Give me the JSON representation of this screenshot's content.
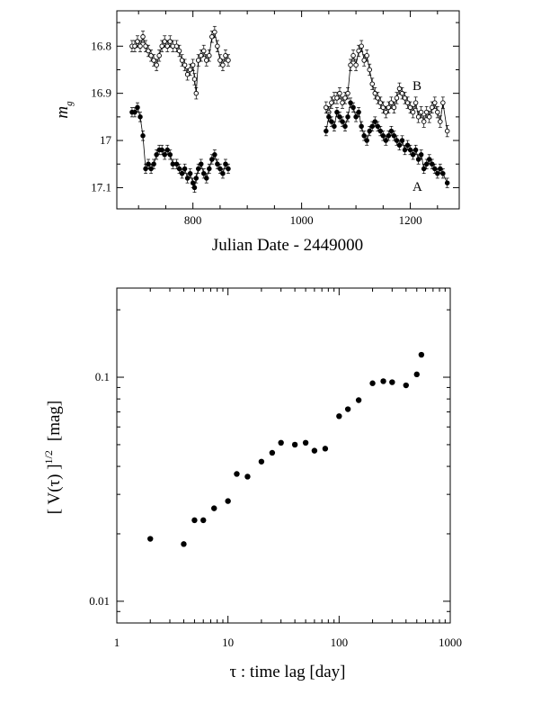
{
  "chart_data": [
    {
      "type": "scatter",
      "xlabel": "Julian Date - 2449000",
      "ylabel_main": "m",
      "ylabel_sub": "g",
      "xlim": [
        660,
        1290
      ],
      "ylim": [
        17.145,
        16.725
      ],
      "y_inverted": true,
      "xticks": [
        800,
        1000,
        1200
      ],
      "yticks": [
        16.8,
        16.9,
        17,
        17.1
      ],
      "ytick_labels": [
        "16.8",
        "16.9",
        "17",
        "17.1"
      ],
      "grid": false,
      "series": [
        {
          "name": "B",
          "marker": "open-circle",
          "error_bar": 0.012,
          "x": [
            688,
            693,
            698,
            703,
            708,
            713,
            718,
            723,
            728,
            733,
            738,
            743,
            748,
            753,
            758,
            763,
            770,
            775,
            780,
            785,
            790,
            795,
            800,
            803,
            806,
            810,
            815,
            820,
            825,
            830,
            835,
            840,
            845,
            850,
            855,
            860,
            865,
            1045,
            1050,
            1055,
            1060,
            1065,
            1070,
            1075,
            1080,
            1085,
            1090,
            1095,
            1100,
            1105,
            1110,
            1115,
            1120,
            1125,
            1130,
            1135,
            1140,
            1145,
            1150,
            1155,
            1160,
            1165,
            1170,
            1175,
            1180,
            1185,
            1190,
            1195,
            1200,
            1205,
            1210,
            1215,
            1220,
            1225,
            1230,
            1235,
            1240,
            1245,
            1250,
            1255,
            1260,
            1268
          ],
          "y": [
            16.8,
            16.8,
            16.79,
            16.8,
            16.78,
            16.8,
            16.81,
            16.82,
            16.83,
            16.84,
            16.82,
            16.8,
            16.79,
            16.8,
            16.79,
            16.8,
            16.8,
            16.81,
            16.83,
            16.84,
            16.86,
            16.85,
            16.84,
            16.87,
            16.9,
            16.83,
            16.82,
            16.81,
            16.83,
            16.82,
            16.78,
            16.77,
            16.8,
            16.83,
            16.84,
            16.82,
            16.83,
            16.93,
            16.94,
            16.92,
            16.91,
            16.91,
            16.9,
            16.92,
            16.91,
            16.9,
            16.84,
            16.82,
            16.84,
            16.81,
            16.8,
            16.83,
            16.82,
            16.85,
            16.88,
            16.9,
            16.91,
            16.92,
            16.93,
            16.94,
            16.93,
            16.92,
            16.93,
            16.91,
            16.89,
            16.9,
            16.91,
            16.92,
            16.93,
            16.94,
            16.92,
            16.95,
            16.94,
            16.96,
            16.94,
            16.95,
            16.93,
            16.92,
            16.94,
            16.96,
            16.92,
            16.98
          ]
        },
        {
          "name": "A",
          "marker": "filled-circle",
          "error_bar": 0.01,
          "x": [
            688,
            693,
            698,
            703,
            708,
            713,
            718,
            723,
            728,
            733,
            738,
            743,
            748,
            753,
            758,
            763,
            770,
            775,
            780,
            785,
            790,
            795,
            800,
            803,
            806,
            810,
            815,
            820,
            825,
            830,
            835,
            840,
            845,
            850,
            855,
            860,
            865,
            1045,
            1050,
            1055,
            1060,
            1065,
            1070,
            1075,
            1080,
            1085,
            1090,
            1095,
            1100,
            1105,
            1110,
            1115,
            1120,
            1125,
            1130,
            1135,
            1140,
            1145,
            1150,
            1155,
            1160,
            1165,
            1170,
            1175,
            1180,
            1185,
            1190,
            1195,
            1200,
            1205,
            1210,
            1215,
            1220,
            1225,
            1230,
            1235,
            1240,
            1245,
            1250,
            1255,
            1260,
            1268
          ],
          "y": [
            16.94,
            16.94,
            16.93,
            16.95,
            16.99,
            17.06,
            17.05,
            17.06,
            17.05,
            17.03,
            17.02,
            17.02,
            17.03,
            17.02,
            17.03,
            17.05,
            17.05,
            17.06,
            17.07,
            17.06,
            17.08,
            17.07,
            17.09,
            17.1,
            17.08,
            17.06,
            17.05,
            17.07,
            17.08,
            17.06,
            17.04,
            17.03,
            17.05,
            17.06,
            17.07,
            17.05,
            17.06,
            16.98,
            16.95,
            16.96,
            16.97,
            16.94,
            16.95,
            16.96,
            16.97,
            16.95,
            16.92,
            16.93,
            16.95,
            16.94,
            16.97,
            16.99,
            17.0,
            16.98,
            16.97,
            16.96,
            16.97,
            16.98,
            16.99,
            17.0,
            16.99,
            16.98,
            16.99,
            17.0,
            17.01,
            17.0,
            17.02,
            17.01,
            17.02,
            17.03,
            17.02,
            17.04,
            17.03,
            17.06,
            17.05,
            17.04,
            17.05,
            17.06,
            17.07,
            17.06,
            17.07,
            17.09
          ]
        }
      ]
    },
    {
      "type": "scatter",
      "xlabel": "τ  : time lag  [day]",
      "ylabel_main": "[ V(τ) ]",
      "ylabel_sup": "1/2",
      "ylabel_unit": "[mag]",
      "xscale": "log",
      "yscale": "log",
      "xlim": [
        1,
        1000
      ],
      "ylim": [
        0.008,
        0.25
      ],
      "xticks": [
        1,
        10,
        100,
        1000
      ],
      "xtick_labels": [
        "1",
        "10",
        "100",
        "1000"
      ],
      "yticks": [
        0.01,
        0.1
      ],
      "ytick_labels": [
        "0.01",
        "0.1"
      ],
      "grid": false,
      "series": [
        {
          "marker": "filled-circle",
          "x": [
            2,
            4,
            5,
            6,
            7.5,
            10,
            12,
            15,
            20,
            25,
            30,
            40,
            50,
            60,
            75,
            100,
            120,
            150,
            200,
            250,
            300,
            400,
            500,
            550
          ],
          "y": [
            0.019,
            0.018,
            0.023,
            0.023,
            0.026,
            0.028,
            0.037,
            0.036,
            0.042,
            0.046,
            0.051,
            0.05,
            0.051,
            0.047,
            0.048,
            0.067,
            0.072,
            0.079,
            0.094,
            0.096,
            0.095,
            0.092,
            0.103,
            0.126
          ]
        }
      ]
    }
  ]
}
